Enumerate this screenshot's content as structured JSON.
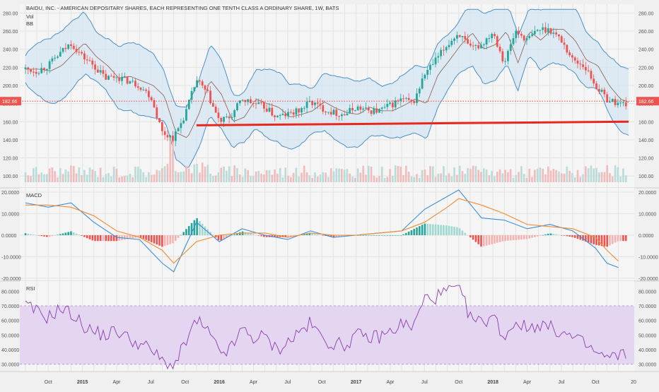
{
  "chart_data": [
    {
      "type": "candlestick",
      "title": "BAIDU, INC. - AMERICAN DEPOSITARY SHARES, EACH REPRESENTING ONE TENTH CLASS A ORDINARY SHARE, 1W, BATS",
      "indicators": [
        "Vol",
        "BB"
      ],
      "last_price": "182.66",
      "y_ticks": [
        "280.00",
        "260.00",
        "240.00",
        "220.00",
        "200.00",
        "180.00",
        "160.00",
        "140.00",
        "120.00",
        "100.00"
      ],
      "ylim": [
        90,
        285
      ],
      "trendline": {
        "from": [
          "2015-11",
          156
        ],
        "to": [
          "2018-12",
          160
        ],
        "color": "#e8271d"
      },
      "colors": {
        "up": "#26a69a",
        "down": "#ef5350",
        "band": "#4a90c8",
        "basis": "#8b5a4a",
        "band_fill": "#d6e6f2"
      },
      "close_path": [
        [
          "2014-08",
          218
        ],
        [
          "2014-09",
          216
        ],
        [
          "2014-10",
          222
        ],
        [
          "2014-11",
          235
        ],
        [
          "2014-12",
          247
        ],
        [
          "2015-01",
          232
        ],
        [
          "2015-02",
          222
        ],
        [
          "2015-03",
          208
        ],
        [
          "2015-04",
          210
        ],
        [
          "2015-05",
          205
        ],
        [
          "2015-06",
          200
        ],
        [
          "2015-07",
          188
        ],
        [
          "2015-08",
          148
        ],
        [
          "2015-09",
          142
        ],
        [
          "2015-10",
          168
        ],
        [
          "2015-11",
          206
        ],
        [
          "2015-12",
          190
        ],
        [
          "2016-01",
          160
        ],
        [
          "2016-02",
          165
        ],
        [
          "2016-03",
          185
        ],
        [
          "2016-04",
          180
        ],
        [
          "2016-05",
          176
        ],
        [
          "2016-06",
          165
        ],
        [
          "2016-07",
          168
        ],
        [
          "2016-08",
          172
        ],
        [
          "2016-09",
          182
        ],
        [
          "2016-10",
          175
        ],
        [
          "2016-11",
          170
        ],
        [
          "2016-12",
          168
        ],
        [
          "2017-01",
          176
        ],
        [
          "2017-02",
          172
        ],
        [
          "2017-03",
          172
        ],
        [
          "2017-04",
          178
        ],
        [
          "2017-05",
          185
        ],
        [
          "2017-06",
          180
        ],
        [
          "2017-07",
          212
        ],
        [
          "2017-08",
          228
        ],
        [
          "2017-09",
          245
        ],
        [
          "2017-10",
          258
        ],
        [
          "2017-11",
          240
        ],
        [
          "2017-12",
          245
        ],
        [
          "2018-01",
          260
        ],
        [
          "2018-02",
          225
        ],
        [
          "2018-03",
          260
        ],
        [
          "2018-04",
          250
        ],
        [
          "2018-05",
          262
        ],
        [
          "2018-06",
          262
        ],
        [
          "2018-07",
          250
        ],
        [
          "2018-08",
          228
        ],
        [
          "2018-09",
          222
        ],
        [
          "2018-10",
          200
        ],
        [
          "2018-11",
          185
        ],
        [
          "2018-12",
          180
        ]
      ]
    },
    {
      "type": "line",
      "title": "MACD",
      "y_ticks": [
        "20.0000",
        "10.0000",
        "0.0000",
        "-10.0000",
        "-20.0000"
      ],
      "ylim": [
        -20,
        20
      ],
      "series": [
        {
          "color": "#3a8fd9",
          "points": [
            [
              "2014-08",
              15
            ],
            [
              "2014-10",
              13
            ],
            [
              "2014-12",
              15
            ],
            [
              "2015-02",
              6
            ],
            [
              "2015-04",
              -1
            ],
            [
              "2015-06",
              -2
            ],
            [
              "2015-08",
              -13
            ],
            [
              "2015-09",
              -17
            ],
            [
              "2015-11",
              6
            ],
            [
              "2016-01",
              -3
            ],
            [
              "2016-03",
              3
            ],
            [
              "2016-05",
              0
            ],
            [
              "2016-07",
              -2
            ],
            [
              "2016-09",
              2
            ],
            [
              "2016-11",
              -1
            ],
            [
              "2017-01",
              0
            ],
            [
              "2017-03",
              1
            ],
            [
              "2017-05",
              2
            ],
            [
              "2017-07",
              12
            ],
            [
              "2017-09",
              18
            ],
            [
              "2017-10",
              21
            ],
            [
              "2017-12",
              8
            ],
            [
              "2018-02",
              7
            ],
            [
              "2018-04",
              3
            ],
            [
              "2018-06",
              5
            ],
            [
              "2018-08",
              2
            ],
            [
              "2018-10",
              -6
            ],
            [
              "2018-11",
              -13
            ],
            [
              "2018-12",
              -15
            ]
          ]
        },
        {
          "color": "#f28b30",
          "points": [
            [
              "2014-08",
              14
            ],
            [
              "2014-10",
              14
            ],
            [
              "2014-12",
              13
            ],
            [
              "2015-02",
              9
            ],
            [
              "2015-04",
              2
            ],
            [
              "2015-06",
              -1
            ],
            [
              "2015-08",
              -7
            ],
            [
              "2015-09",
              -13
            ],
            [
              "2015-11",
              -3
            ],
            [
              "2016-01",
              0
            ],
            [
              "2016-03",
              1
            ],
            [
              "2016-05",
              1
            ],
            [
              "2016-07",
              -1
            ],
            [
              "2016-09",
              1
            ],
            [
              "2016-11",
              0
            ],
            [
              "2017-01",
              0
            ],
            [
              "2017-03",
              1
            ],
            [
              "2017-05",
              2
            ],
            [
              "2017-07",
              6
            ],
            [
              "2017-09",
              13
            ],
            [
              "2017-10",
              17
            ],
            [
              "2017-12",
              14
            ],
            [
              "2018-02",
              10
            ],
            [
              "2018-04",
              5
            ],
            [
              "2018-06",
              4
            ],
            [
              "2018-08",
              3
            ],
            [
              "2018-10",
              -1
            ],
            [
              "2018-11",
              -7
            ],
            [
              "2018-12",
              -12
            ]
          ]
        }
      ],
      "histogram_colors": {
        "up_strong": "#26a69a",
        "up_weak": "#9fd8d0",
        "down_strong": "#ef5350",
        "down_weak": "#f5b2b0"
      }
    },
    {
      "type": "line",
      "title": "RSI",
      "y_ticks": [
        "80.0000",
        "70.0000",
        "60.0000",
        "50.0000",
        "40.0000",
        "30.0000"
      ],
      "ylim": [
        26,
        85
      ],
      "band": [
        30,
        70
      ],
      "colors": {
        "line": "#8a3db0",
        "band_fill": "#e4d6f0"
      },
      "series": [
        {
          "points": [
            [
              "2014-08",
              70
            ],
            [
              "2014-09",
              66
            ],
            [
              "2014-10",
              62
            ],
            [
              "2014-11",
              68
            ],
            [
              "2014-12",
              65
            ],
            [
              "2015-01",
              57
            ],
            [
              "2015-02",
              52
            ],
            [
              "2015-03",
              50
            ],
            [
              "2015-04",
              53
            ],
            [
              "2015-05",
              48
            ],
            [
              "2015-06",
              44
            ],
            [
              "2015-07",
              40
            ],
            [
              "2015-08",
              32
            ],
            [
              "2015-09",
              28
            ],
            [
              "2015-10",
              44
            ],
            [
              "2015-11",
              60
            ],
            [
              "2015-12",
              52
            ],
            [
              "2016-01",
              38
            ],
            [
              "2016-02",
              40
            ],
            [
              "2016-03",
              54
            ],
            [
              "2016-04",
              48
            ],
            [
              "2016-05",
              49
            ],
            [
              "2016-06",
              40
            ],
            [
              "2016-07",
              45
            ],
            [
              "2016-08",
              52
            ],
            [
              "2016-09",
              58
            ],
            [
              "2016-10",
              48
            ],
            [
              "2016-11",
              44
            ],
            [
              "2016-12",
              43
            ],
            [
              "2017-01",
              50
            ],
            [
              "2017-02",
              48
            ],
            [
              "2017-03",
              49
            ],
            [
              "2017-04",
              52
            ],
            [
              "2017-05",
              58
            ],
            [
              "2017-06",
              55
            ],
            [
              "2017-07",
              75
            ],
            [
              "2017-08",
              76
            ],
            [
              "2017-09",
              80
            ],
            [
              "2017-10",
              83
            ],
            [
              "2017-11",
              62
            ],
            [
              "2017-12",
              58
            ],
            [
              "2018-01",
              64
            ],
            [
              "2018-02",
              48
            ],
            [
              "2018-03",
              60
            ],
            [
              "2018-04",
              54
            ],
            [
              "2018-05",
              58
            ],
            [
              "2018-06",
              55
            ],
            [
              "2018-07",
              52
            ],
            [
              "2018-08",
              48
            ],
            [
              "2018-09",
              44
            ],
            [
              "2018-10",
              38
            ],
            [
              "2018-11",
              34
            ],
            [
              "2018-12",
              36
            ]
          ]
        }
      ]
    }
  ],
  "x_axis": {
    "labels": [
      "Oct",
      "2015",
      "Apr",
      "Jul",
      "Oct",
      "2016",
      "Apr",
      "Jul",
      "Oct",
      "2017",
      "Apr",
      "Jul",
      "Oct",
      "2018",
      "Apr",
      "Jul",
      "Oct",
      "20"
    ]
  }
}
